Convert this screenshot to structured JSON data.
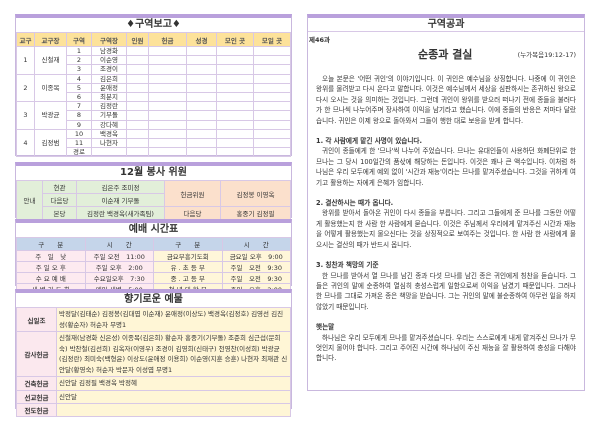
{
  "district_report": {
    "title": "♦구역보고♦",
    "headers": [
      "교구",
      "교구장",
      "구역",
      "구역장",
      "인원",
      "헌금",
      "성경",
      "모인 곳",
      "모일 곳"
    ],
    "parishes": [
      {
        "no": "1",
        "leader": "신철재",
        "districts": [
          [
            "1",
            "남경화"
          ],
          [
            "2",
            "이순영"
          ],
          [
            "3",
            "조경이"
          ]
        ]
      },
      {
        "no": "2",
        "leader": "이종목",
        "districts": [
          [
            "4",
            "김은희"
          ],
          [
            "5",
            "윤애정"
          ],
          [
            "6",
            "최분지"
          ]
        ]
      },
      {
        "no": "3",
        "leader": "박광균",
        "districts": [
          [
            "7",
            "김정란"
          ],
          [
            "8",
            "기부돌"
          ],
          [
            "9",
            "강다혜"
          ]
        ]
      },
      {
        "no": "4",
        "leader": "김정범",
        "districts": [
          [
            "10",
            "백경옥"
          ],
          [
            "11",
            "나현자"
          ],
          [
            "경로",
            ""
          ]
        ]
      }
    ]
  },
  "service": {
    "title": "12월 봉사 위원",
    "guide": "안내",
    "rows": [
      [
        "현관",
        "김은주 조미정"
      ],
      [
        "다음당",
        "이순재 기부돌"
      ],
      [
        "본당",
        "김정란 백경옥(새가족팀)"
      ]
    ],
    "offering_label": "헌금위원",
    "offering_names": "김정봉 이영옥",
    "next_label": "다음당",
    "next_names": "홍중기 김정필"
  },
  "worship": {
    "title": "예배 시간표",
    "headers": [
      "구　　분",
      "시　　간",
      "구　　분",
      "시　　간"
    ],
    "rows": [
      [
        "주　일　낮",
        "주일 오전　11:00",
        "금요부흥기도회",
        "금요일 오후　9:00"
      ],
      [
        "주 일 오 후",
        "주일 오후　2:00",
        "유 . 초 등 부",
        "주일　오전　9:30"
      ],
      [
        "수 요 예 배",
        "수요일오후　7:30",
        "중 . 고 등 부",
        "주일　오전　9:30"
      ],
      [
        "새 벽 기 도 회",
        "매일 새벽　5:00",
        "청 년 대 학 부",
        "주일　오후　2:00"
      ]
    ]
  },
  "offerings": {
    "title": "향기로운 예물",
    "rows": [
      {
        "label": "십일조",
        "names": "박정달(김태순) 김정봉(김대엽 이순재) 윤애정(이상도) 백경옥(김정호) 김영선 김진성(황순자) 허순자 무명1"
      },
      {
        "label": "감사헌금",
        "names": "신철재(남경화 신은성) 이종목(김은희) 황순자 홍중기(기부돌) 조준희 심근섭(문희숙) 박찬철(김선희) 김옥자(이영우) 조경이 김영희(신태구) 천영찬(이성희) 박광균(김정란) 최미숙(백형윤) 이상도(윤애정 이용희) 이순영(지훈 승훈) 나현자 최재관 신안달(황영숙) 허순자 박문자 이성엽 무명1"
      },
      {
        "label": "건축헌금",
        "names": "신안달 김정필 백경옥 박정혜"
      },
      {
        "label": "선교헌금",
        "names": "신안달"
      },
      {
        "label": "전도헌금",
        "names": ""
      }
    ]
  },
  "lesson": {
    "title": "구역공과",
    "number": "제46과",
    "subtitle": "순종과 결실",
    "reference": "(누가복음19:12-17)",
    "intro": "오늘 본문은 '어떤 귀인'의 이야기입니다. 이 귀인은 예수님을 상징합니다. 나중에 이 귀인은 왕위를 물려받고 다시 온다고 말합니다. 이것은 예수님께서 세상을 심판하시는 존귀하신 왕으로 다시 오시는 것을 의미하는 것입니다. 그런데 귀인이 왕위를 받으러 떠나기 전에 종들을 불러다가 한 므나씩 나누어주며 장사하여 이익을 남기라고 했습니다. 이에 종들의 반응은 저마다 달랐습니다. 귀인은 이제 왕으로 돌아와서 그들이 행한 대로 보응을 받게 합니다.",
    "sections": [
      {
        "heading": "1. 각 사람에게 맡긴 사명이 있습니다.",
        "body": "귀인이 종들에게 한 '므나'씩 나누어 주었습니다. 므나는 유대인들이 사용하던 화폐단위로 한 므나는 그 당시 100일간의 품삯에 해당하는 돈입니다. 이것은 꽤나 큰 액수입니다. 이처럼 하나님은 우리 모두에게 예외 없이 '시간과 재능'이라는 므나를 맡겨주셨습니다. 그것을 귀하게 여기고 활용하는 자에게 은혜가 임합니다."
      },
      {
        "heading": "2. 결산하시는 때가 옵니다.",
        "body": "왕위를 받아서 돌아온 귀인이 다시 종들을 부릅니다. 그리고 그들에게 준 므나를 그동안 어떻게 활용했는지 한 사람 한 사람에게 묻습니다. 이것은 주님께서 우리에게 맡겨주신 시간과 재능을 어떻게 활용했는지 물으신다는 것을 상징적으로 보여주는 것입니다. 한 사람 한 사람에게 물으시는 결산의 때가 반드시 옵니다."
      },
      {
        "heading": "3. 칭찬과 책망의 기준",
        "body": "한 므나를 받아서 열 므나를 남긴 종과 다섯 므나를 남긴 종은 귀인에게 칭찬을 듣습니다. 그들은 귀인의 말에 순종하여 열심히 충성스럽게 일함으로써 이익을 남겼기 때문입니다. 그러나 한 므나를 그대로 가져온 종은 책망을 받습니다. 그는 귀인의 말에 불순종하여 아무런 일을 하지 않았기 때문입니다."
      },
      {
        "heading": "햇는말",
        "body": "하나님은 우리 모두에게 므나를 맡겨주셨습니다. 우리는 스스로에게 내게 맡겨주신 므나가 무엇인지 물어야 합니다. 그리고 주어진 시간에 하나님이 주신 재능을 잘 활용하여 충성을 다해야 합니다."
      }
    ]
  },
  "colors": {
    "accent": "#b9a0dc",
    "header_yellow": "#fde29a",
    "green": "#e2efd9",
    "orange": "#fbe0cc",
    "blue": "#c5d5ea"
  }
}
